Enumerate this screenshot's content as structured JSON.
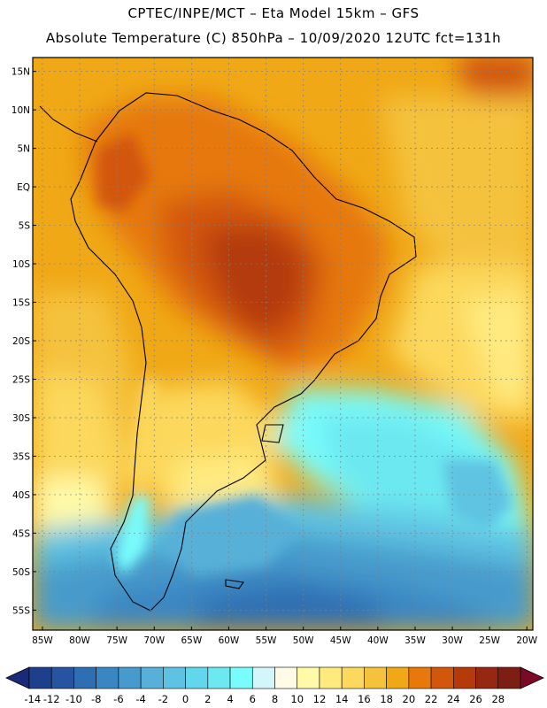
{
  "header": {
    "line1": "CPTEC/INPE/MCT –  Eta Model 15km – GFS",
    "line2": "Absolute Temperature (C) 850hPa – 10/09/2020 12UTC fct=131h"
  },
  "axes": {
    "lat_labels": [
      "15N",
      "10N",
      "5N",
      "EQ",
      "5S",
      "10S",
      "15S",
      "20S",
      "25S",
      "30S",
      "35S",
      "40S",
      "45S",
      "50S",
      "55S"
    ],
    "lat_values": [
      15,
      10,
      5,
      0,
      -5,
      -10,
      -15,
      -20,
      -25,
      -30,
      -35,
      -40,
      -45,
      -50,
      -55
    ],
    "lon_labels": [
      "85W",
      "80W",
      "75W",
      "70W",
      "65W",
      "60W",
      "55W",
      "50W",
      "45W",
      "40W",
      "35W",
      "30W",
      "25W",
      "20W"
    ],
    "lon_values": [
      -85,
      -80,
      -75,
      -70,
      -65,
      -60,
      -55,
      -50,
      -45,
      -40,
      -35,
      -30,
      -25,
      -20
    ]
  },
  "colorbar": {
    "labels": [
      "-14",
      "-12",
      "-10",
      "-8",
      "-6",
      "-4",
      "-2",
      "0",
      "2",
      "4",
      "6",
      "8",
      "10",
      "12",
      "14",
      "16",
      "18",
      "20",
      "22",
      "24",
      "26",
      "28"
    ],
    "colors": [
      "#1e3f8c",
      "#2654a0",
      "#2e6eb2",
      "#3a86c2",
      "#479bcc",
      "#56b0d8",
      "#5ec3e2",
      "#62d6ea",
      "#6ce8f0",
      "#78fcfc",
      "#d2f6fa",
      "#fffbe6",
      "#fffaa8",
      "#ffea80",
      "#fcd85c",
      "#f5c23c",
      "#f0a816",
      "#e6780c",
      "#d2560c",
      "#b43a0a",
      "#962812",
      "#7c1e14"
    ],
    "under_color": "#1a2a78",
    "over_color": "#7a0a26"
  }
}
